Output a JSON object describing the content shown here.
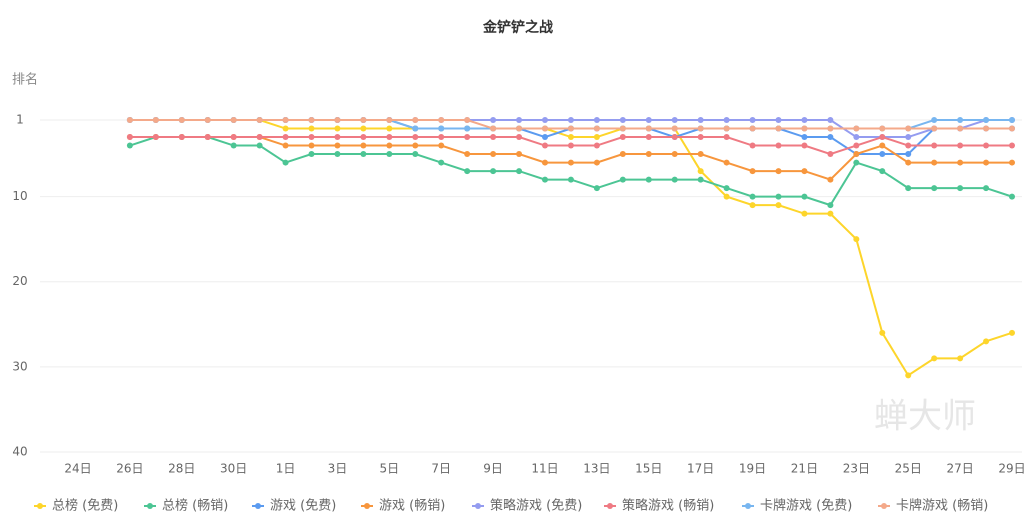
{
  "chart_data": {
    "type": "line",
    "title": "金铲铲之战",
    "ylabel": "排名",
    "watermark": "蝉大师",
    "categories": [
      "24日",
      null,
      "26日",
      null,
      "28日",
      null,
      "30日",
      null,
      "1日",
      null,
      "3日",
      null,
      "5日",
      null,
      "7日",
      null,
      "9日",
      null,
      "11日",
      null,
      "13日",
      null,
      "15日",
      null,
      "17日",
      null,
      "19日",
      null,
      "21日",
      null,
      "23日",
      null,
      "25日",
      null,
      "27日",
      null,
      "29日"
    ],
    "ylim": [
      1,
      40
    ],
    "yticks": [
      1,
      10,
      20,
      30,
      40
    ],
    "inverted": true,
    "grid": true,
    "legend": "bottom",
    "series": [
      {
        "name": "总榜 (免费)",
        "color": "#fdd52b",
        "values": [
          null,
          null,
          1,
          1,
          1,
          1,
          1,
          1,
          2,
          2,
          2,
          2,
          2,
          2,
          2,
          2,
          2,
          2,
          2,
          3,
          3,
          2,
          2,
          2,
          7,
          10,
          11,
          11,
          12,
          12,
          15,
          26,
          31,
          29,
          29,
          27,
          26
        ]
      },
      {
        "name": "总榜 (畅销)",
        "color": "#4cc594",
        "values": [
          null,
          null,
          4,
          3,
          3,
          3,
          4,
          4,
          6,
          5,
          5,
          5,
          5,
          5,
          6,
          7,
          7,
          7,
          8,
          8,
          9,
          8,
          8,
          8,
          8,
          9,
          10,
          10,
          10,
          11,
          6,
          7,
          9,
          9,
          9,
          9,
          10
        ]
      },
      {
        "name": "游戏 (免费)",
        "color": "#5b9bf0",
        "values": [
          null,
          null,
          1,
          1,
          1,
          1,
          1,
          1,
          1,
          1,
          1,
          1,
          1,
          2,
          2,
          2,
          2,
          2,
          3,
          2,
          2,
          2,
          2,
          3,
          2,
          2,
          2,
          2,
          3,
          3,
          5,
          5,
          5,
          2,
          2,
          2,
          2
        ]
      },
      {
        "name": "游戏 (畅销)",
        "color": "#f7963d",
        "values": [
          null,
          null,
          3,
          3,
          3,
          3,
          3,
          3,
          4,
          4,
          4,
          4,
          4,
          4,
          4,
          5,
          5,
          5,
          6,
          6,
          6,
          5,
          5,
          5,
          5,
          6,
          7,
          7,
          7,
          8,
          5,
          4,
          6,
          6,
          6,
          6,
          6
        ]
      },
      {
        "name": "策略游戏 (免费)",
        "color": "#949cf0",
        "values": [
          null,
          null,
          1,
          1,
          1,
          1,
          1,
          1,
          1,
          1,
          1,
          1,
          1,
          1,
          1,
          1,
          1,
          1,
          1,
          1,
          1,
          1,
          1,
          1,
          1,
          1,
          1,
          1,
          1,
          1,
          3,
          3,
          3,
          2,
          2,
          1,
          1
        ]
      },
      {
        "name": "策略游戏 (畅销)",
        "color": "#ef7a83",
        "values": [
          null,
          null,
          3,
          3,
          3,
          3,
          3,
          3,
          3,
          3,
          3,
          3,
          3,
          3,
          3,
          3,
          3,
          3,
          4,
          4,
          4,
          3,
          3,
          3,
          3,
          3,
          4,
          4,
          4,
          5,
          4,
          3,
          4,
          4,
          4,
          4,
          4
        ]
      },
      {
        "name": "卡牌游戏 (免费)",
        "color": "#78b6f0",
        "values": [
          null,
          null,
          1,
          1,
          1,
          1,
          1,
          1,
          1,
          1,
          1,
          1,
          1,
          2,
          2,
          2,
          2,
          2,
          2,
          2,
          2,
          2,
          2,
          2,
          2,
          2,
          2,
          2,
          2,
          2,
          2,
          2,
          2,
          1,
          1,
          1,
          1
        ]
      },
      {
        "name": "卡牌游戏 (畅销)",
        "color": "#f4a98a",
        "values": [
          null,
          null,
          1,
          1,
          1,
          1,
          1,
          1,
          1,
          1,
          1,
          1,
          1,
          1,
          1,
          1,
          2,
          2,
          2,
          2,
          2,
          2,
          2,
          2,
          2,
          2,
          2,
          2,
          2,
          2,
          2,
          2,
          2,
          2,
          2,
          2,
          2
        ]
      }
    ]
  }
}
